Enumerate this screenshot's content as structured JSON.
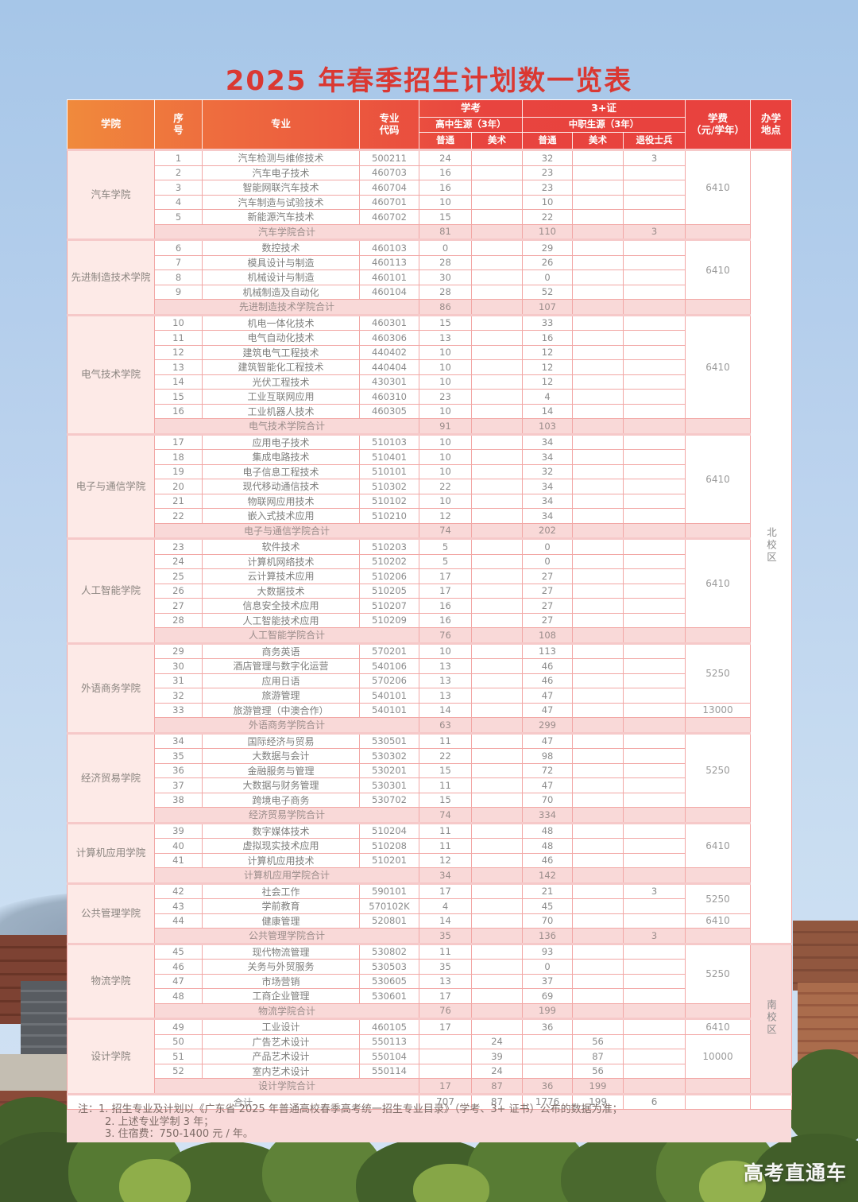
{
  "page": {
    "title": "2025 年春季招生计划数一览表",
    "watermark": "高考直通车"
  },
  "colors": {
    "title_red": "#da3832",
    "header_orange": "#f08a3c",
    "header_red": "#e8443f",
    "panel_pink": "#f9dada",
    "cell_border": "#f2a7a5",
    "college_cell": "#fdeae7",
    "total_row": "#f9d9d8",
    "campus_south": "#f9dbda",
    "body_text": "#8b8b8b",
    "note_text": "#7e6c67"
  },
  "table": {
    "header": {
      "college": "学院",
      "no": "序号",
      "major": "专业",
      "code": "专业代码",
      "xk": "学考",
      "zz": "3+证",
      "xk_sub": "高中生源（3年）",
      "zz_sub": "中职生源（3年）",
      "pt1": "普通",
      "ms1": "美术",
      "pt2": "普通",
      "ms2": "美术",
      "ty": "退役士兵",
      "fee_line1": "学费",
      "fee_line2": "（元/学年）",
      "campus_line1": "办学",
      "campus_line2": "地点"
    },
    "campuses": [
      {
        "name": "北校区",
        "section_count": 9
      },
      {
        "name": "南校区",
        "section_count": 2
      }
    ],
    "sections": [
      {
        "college": "汽车学院",
        "fees": [
          {
            "value": "6410",
            "rows": 5
          }
        ],
        "rows": [
          [
            "1",
            "汽车检测与维修技术",
            "500211",
            "24",
            "",
            "32",
            "",
            "3"
          ],
          [
            "2",
            "汽车电子技术",
            "460703",
            "16",
            "",
            "23",
            "",
            ""
          ],
          [
            "3",
            "智能网联汽车技术",
            "460704",
            "16",
            "",
            "23",
            "",
            ""
          ],
          [
            "4",
            "汽车制造与试验技术",
            "460701",
            "10",
            "",
            "10",
            "",
            ""
          ],
          [
            "5",
            "新能源汽车技术",
            "460702",
            "15",
            "",
            "22",
            "",
            ""
          ]
        ],
        "total": {
          "label": "汽车学院合计",
          "values": [
            "81",
            "",
            "110",
            "",
            "3"
          ]
        }
      },
      {
        "college": "先进制造技术学院",
        "fees": [
          {
            "value": "6410",
            "rows": 4
          }
        ],
        "rows": [
          [
            "6",
            "数控技术",
            "460103",
            "0",
            "",
            "29",
            "",
            ""
          ],
          [
            "7",
            "模具设计与制造",
            "460113",
            "28",
            "",
            "26",
            "",
            ""
          ],
          [
            "8",
            "机械设计与制造",
            "460101",
            "30",
            "",
            "0",
            "",
            ""
          ],
          [
            "9",
            "机械制造及自动化",
            "460104",
            "28",
            "",
            "52",
            "",
            ""
          ]
        ],
        "total": {
          "label": "先进制造技术学院合计",
          "values": [
            "86",
            "",
            "107",
            "",
            ""
          ]
        }
      },
      {
        "college": "电气技术学院",
        "fees": [
          {
            "value": "6410",
            "rows": 7
          }
        ],
        "rows": [
          [
            "10",
            "机电一体化技术",
            "460301",
            "15",
            "",
            "33",
            "",
            ""
          ],
          [
            "11",
            "电气自动化技术",
            "460306",
            "13",
            "",
            "16",
            "",
            ""
          ],
          [
            "12",
            "建筑电气工程技术",
            "440402",
            "10",
            "",
            "12",
            "",
            ""
          ],
          [
            "13",
            "建筑智能化工程技术",
            "440404",
            "10",
            "",
            "12",
            "",
            ""
          ],
          [
            "14",
            "光伏工程技术",
            "430301",
            "10",
            "",
            "12",
            "",
            ""
          ],
          [
            "15",
            "工业互联网应用",
            "460310",
            "23",
            "",
            "4",
            "",
            ""
          ],
          [
            "16",
            "工业机器人技术",
            "460305",
            "10",
            "",
            "14",
            "",
            ""
          ]
        ],
        "total": {
          "label": "电气技术学院合计",
          "values": [
            "91",
            "",
            "103",
            "",
            ""
          ]
        }
      },
      {
        "college": "电子与通信学院",
        "fees": [
          {
            "value": "6410",
            "rows": 6
          }
        ],
        "rows": [
          [
            "17",
            "应用电子技术",
            "510103",
            "10",
            "",
            "34",
            "",
            ""
          ],
          [
            "18",
            "集成电路技术",
            "510401",
            "10",
            "",
            "34",
            "",
            ""
          ],
          [
            "19",
            "电子信息工程技术",
            "510101",
            "10",
            "",
            "32",
            "",
            ""
          ],
          [
            "20",
            "现代移动通信技术",
            "510302",
            "22",
            "",
            "34",
            "",
            ""
          ],
          [
            "21",
            "物联网应用技术",
            "510102",
            "10",
            "",
            "34",
            "",
            ""
          ],
          [
            "22",
            "嵌入式技术应用",
            "510210",
            "12",
            "",
            "34",
            "",
            ""
          ]
        ],
        "total": {
          "label": "电子与通信学院合计",
          "values": [
            "74",
            "",
            "202",
            "",
            ""
          ]
        }
      },
      {
        "college": "人工智能学院",
        "fees": [
          {
            "value": "6410",
            "rows": 6
          }
        ],
        "rows": [
          [
            "23",
            "软件技术",
            "510203",
            "5",
            "",
            "0",
            "",
            ""
          ],
          [
            "24",
            "计算机网络技术",
            "510202",
            "5",
            "",
            "0",
            "",
            ""
          ],
          [
            "25",
            "云计算技术应用",
            "510206",
            "17",
            "",
            "27",
            "",
            ""
          ],
          [
            "26",
            "大数据技术",
            "510205",
            "17",
            "",
            "27",
            "",
            ""
          ],
          [
            "27",
            "信息安全技术应用",
            "510207",
            "16",
            "",
            "27",
            "",
            ""
          ],
          [
            "28",
            "人工智能技术应用",
            "510209",
            "16",
            "",
            "27",
            "",
            ""
          ]
        ],
        "total": {
          "label": "人工智能学院合计",
          "values": [
            "76",
            "",
            "108",
            "",
            ""
          ]
        }
      },
      {
        "college": "外语商务学院",
        "fees": [
          {
            "value": "5250",
            "rows": 4
          },
          {
            "value": "13000",
            "rows": 1
          }
        ],
        "rows": [
          [
            "29",
            "商务英语",
            "570201",
            "10",
            "",
            "113",
            "",
            ""
          ],
          [
            "30",
            "酒店管理与数字化运营",
            "540106",
            "13",
            "",
            "46",
            "",
            ""
          ],
          [
            "31",
            "应用日语",
            "570206",
            "13",
            "",
            "46",
            "",
            ""
          ],
          [
            "32",
            "旅游管理",
            "540101",
            "13",
            "",
            "47",
            "",
            ""
          ],
          [
            "33",
            "旅游管理（中澳合作）",
            "540101",
            "14",
            "",
            "47",
            "",
            ""
          ]
        ],
        "total": {
          "label": "外语商务学院合计",
          "values": [
            "63",
            "",
            "299",
            "",
            ""
          ]
        }
      },
      {
        "college": "经济贸易学院",
        "fees": [
          {
            "value": "5250",
            "rows": 5
          }
        ],
        "rows": [
          [
            "34",
            "国际经济与贸易",
            "530501",
            "11",
            "",
            "47",
            "",
            ""
          ],
          [
            "35",
            "大数据与会计",
            "530302",
            "22",
            "",
            "98",
            "",
            ""
          ],
          [
            "36",
            "金融服务与管理",
            "530201",
            "15",
            "",
            "72",
            "",
            ""
          ],
          [
            "37",
            "大数据与财务管理",
            "530301",
            "11",
            "",
            "47",
            "",
            ""
          ],
          [
            "38",
            "跨境电子商务",
            "530702",
            "15",
            "",
            "70",
            "",
            ""
          ]
        ],
        "total": {
          "label": "经济贸易学院合计",
          "values": [
            "74",
            "",
            "334",
            "",
            ""
          ]
        }
      },
      {
        "college": "计算机应用学院",
        "fees": [
          {
            "value": "6410",
            "rows": 3
          }
        ],
        "rows": [
          [
            "39",
            "数字媒体技术",
            "510204",
            "11",
            "",
            "48",
            "",
            ""
          ],
          [
            "40",
            "虚拟现实技术应用",
            "510208",
            "11",
            "",
            "48",
            "",
            ""
          ],
          [
            "41",
            "计算机应用技术",
            "510201",
            "12",
            "",
            "46",
            "",
            ""
          ]
        ],
        "total": {
          "label": "计算机应用学院合计",
          "values": [
            "34",
            "",
            "142",
            "",
            ""
          ]
        }
      },
      {
        "college": "公共管理学院",
        "fees": [
          {
            "value": "5250",
            "rows": 2
          },
          {
            "value": "6410",
            "rows": 1
          }
        ],
        "rows": [
          [
            "42",
            "社会工作",
            "590101",
            "17",
            "",
            "21",
            "",
            "3"
          ],
          [
            "43",
            "学前教育",
            "570102K",
            "4",
            "",
            "45",
            "",
            ""
          ],
          [
            "44",
            "健康管理",
            "520801",
            "14",
            "",
            "70",
            "",
            ""
          ]
        ],
        "total": {
          "label": "公共管理学院合计",
          "values": [
            "35",
            "",
            "136",
            "",
            "3"
          ]
        }
      },
      {
        "college": "物流学院",
        "fees": [
          {
            "value": "5250",
            "rows": 4
          }
        ],
        "rows": [
          [
            "45",
            "现代物流管理",
            "530802",
            "11",
            "",
            "93",
            "",
            ""
          ],
          [
            "46",
            "关务与外贸服务",
            "530503",
            "35",
            "",
            "0",
            "",
            ""
          ],
          [
            "47",
            "市场营销",
            "530605",
            "13",
            "",
            "37",
            "",
            ""
          ],
          [
            "48",
            "工商企业管理",
            "530601",
            "17",
            "",
            "69",
            "",
            ""
          ]
        ],
        "total": {
          "label": "物流学院合计",
          "values": [
            "76",
            "",
            "199",
            "",
            ""
          ]
        }
      },
      {
        "college": "设计学院",
        "fees": [
          {
            "value": "6410",
            "rows": 1
          },
          {
            "value": "10000",
            "rows": 3
          }
        ],
        "rows": [
          [
            "49",
            "工业设计",
            "460105",
            "17",
            "",
            "36",
            "",
            ""
          ],
          [
            "50",
            "广告艺术设计",
            "550113",
            "",
            "24",
            "",
            "56",
            ""
          ],
          [
            "51",
            "产品艺术设计",
            "550104",
            "",
            "39",
            "",
            "87",
            ""
          ],
          [
            "52",
            "室内艺术设计",
            "550114",
            "",
            "24",
            "",
            "56",
            ""
          ]
        ],
        "total": {
          "label": "设计学院合计",
          "values": [
            "17",
            "87",
            "36",
            "199",
            ""
          ]
        }
      }
    ],
    "grand_total": {
      "label": "合计",
      "values": [
        "707",
        "87",
        "1776",
        "199",
        "6"
      ]
    }
  },
  "notes": [
    "注：1. 招生专业及计划以《广东省 2025 年普通高校春季高考统一招生专业目录》（学考、3+ 证书）公布的数据为准；",
    "2. 上述专业学制 3 年；",
    "3. 住宿费：750-1400 元 / 年。"
  ]
}
